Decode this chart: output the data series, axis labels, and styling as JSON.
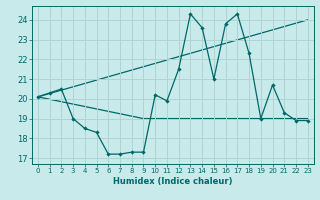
{
  "xlabel": "Humidex (Indice chaleur)",
  "bg_color": "#c8eaea",
  "grid_color": "#b0d4d4",
  "line_color": "#006868",
  "xlim": [
    -0.5,
    23.5
  ],
  "ylim": [
    16.7,
    24.7
  ],
  "yticks": [
    17,
    18,
    19,
    20,
    21,
    22,
    23,
    24
  ],
  "xticks": [
    0,
    1,
    2,
    3,
    4,
    5,
    6,
    7,
    8,
    9,
    10,
    11,
    12,
    13,
    14,
    15,
    16,
    17,
    18,
    19,
    20,
    21,
    22,
    23
  ],
  "series1_x": [
    0,
    1,
    2,
    3,
    4,
    5,
    6,
    7,
    8,
    9,
    10,
    11,
    12,
    13,
    14,
    15,
    16,
    17,
    18,
    19,
    20,
    21,
    22,
    23
  ],
  "series1_y": [
    20.1,
    20.3,
    20.5,
    19.0,
    18.5,
    18.3,
    17.2,
    17.2,
    17.3,
    17.3,
    20.2,
    19.9,
    21.5,
    24.3,
    23.6,
    21.0,
    23.8,
    24.3,
    22.3,
    19.0,
    20.7,
    19.3,
    18.9,
    18.9
  ],
  "series2_x": [
    0,
    23
  ],
  "series2_y": [
    20.1,
    24.0
  ],
  "series3_x": [
    0,
    9,
    19,
    23
  ],
  "series3_y": [
    20.1,
    19.0,
    19.0,
    19.0
  ],
  "figsize": [
    3.2,
    2.0
  ],
  "dpi": 100
}
